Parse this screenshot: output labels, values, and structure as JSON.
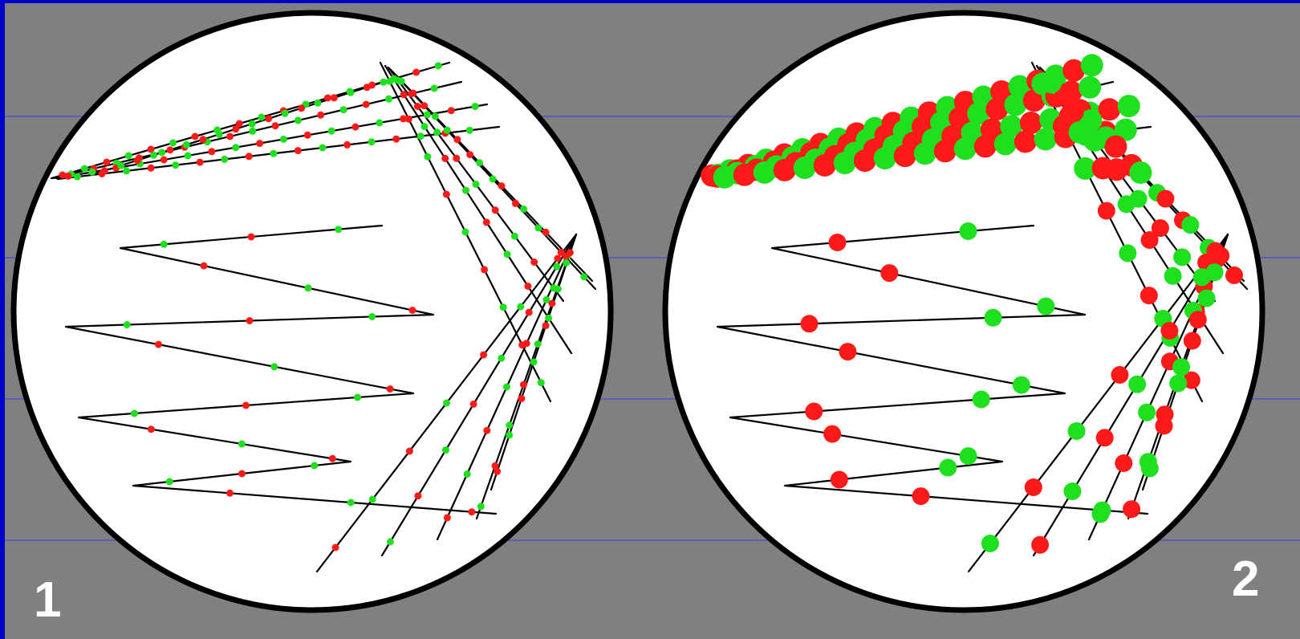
{
  "colors": {
    "frame": "#0000c8",
    "background": "#808080",
    "grid": "#3a3ae6",
    "plate": "#ffffff",
    "outline": "#000000",
    "track": "#000000",
    "dot_red": "#ff1a1a",
    "dot_green": "#1fe01f",
    "label": "#ffffff"
  },
  "panels": [
    {
      "label": "1",
      "dot_size": "small"
    },
    {
      "label": "2",
      "dot_size": "large"
    }
  ]
}
